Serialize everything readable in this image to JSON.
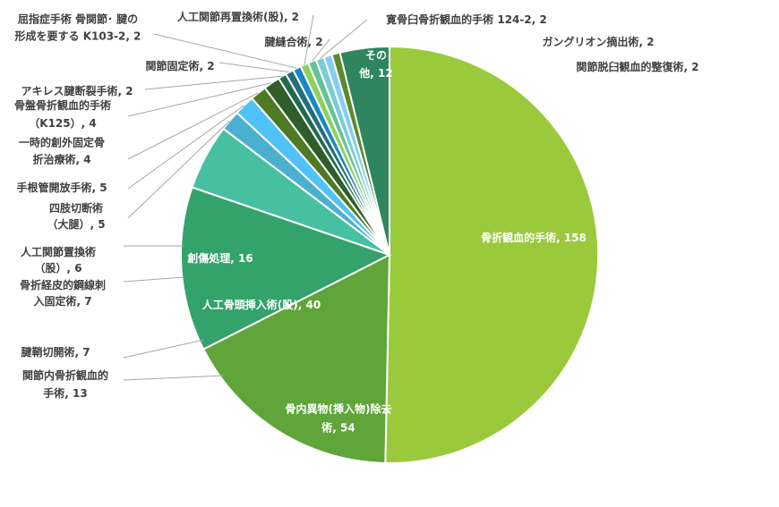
{
  "chart_data": {
    "type": "pie",
    "title": "",
    "slices": [
      {
        "label": "骨折観血的手術",
        "value": 158,
        "color": "#9ACA3C"
      },
      {
        "label": "骨内異物(挿入物)除去術",
        "value": 54,
        "color": "#5FA53A"
      },
      {
        "label": "人工骨頭挿入術(股)",
        "value": 40,
        "color": "#33A26B"
      },
      {
        "label": "創傷処理",
        "value": 16,
        "color": "#46C0A0"
      },
      {
        "label": "四肢切断術（大腿）",
        "value": 5,
        "color": "#4BAFD0"
      },
      {
        "label": "手根管開放手術",
        "value": 5,
        "color": "#4FC3F7"
      },
      {
        "label": "一時的創外固定骨折治療術",
        "value": 4,
        "color": "#4E7A25"
      },
      {
        "label": "骨盤骨折観血的手術（K125）",
        "value": 4,
        "color": "#2F5E2A"
      },
      {
        "label": "アキレス腱断裂手術",
        "value": 2,
        "color": "#1E6B50"
      },
      {
        "label": "関節固定術",
        "value": 2,
        "color": "#256E7E"
      },
      {
        "label": "屈指症手術 骨関節･腱の形成を要する K103-2",
        "value": 2,
        "color": "#1A88C4"
      },
      {
        "label": "人工関節再置換術(股)",
        "value": 2,
        "color": "#8ED15A"
      },
      {
        "label": "腱縫合術",
        "value": 2,
        "color": "#64C29A"
      },
      {
        "label": "寛骨臼骨折観血的手術 124-2",
        "value": 2,
        "color": "#7ACBD7"
      },
      {
        "label": "ガングリオン摘出術",
        "value": 2,
        "color": "#84CEF4"
      },
      {
        "label": "関節脱臼観血的整復術",
        "value": 2,
        "color": "#5A8A2A"
      },
      {
        "label": "その他",
        "value": 12,
        "color": "#2E855E"
      }
    ],
    "data_labels": [
      {
        "lines": [
          "骨折観血的手術, 158"
        ]
      },
      {
        "lines": [
          "骨内異物(挿入物)除去",
          "術, 54"
        ]
      },
      {
        "lines": [
          "人工骨頭挿入術(股), 40"
        ]
      },
      {
        "lines": [
          "創傷処理, 16"
        ]
      },
      {
        "lines": [
          "四肢切断術",
          "（大腿）, 5"
        ]
      },
      {
        "lines": [
          "手根管開放手術, 5"
        ]
      },
      {
        "lines": [
          "一時的創外固定骨",
          "折治療術, 4"
        ]
      },
      {
        "lines": [
          "骨盤骨折観血的手術",
          "（K125）, 4"
        ]
      },
      {
        "lines": [
          "アキレス腱断裂手術, 2"
        ]
      },
      {
        "lines": [
          "関節固定術, 2"
        ]
      },
      {
        "lines": [
          "屈指症手術 骨関節･ 腱の",
          "形成を要する K103-2, 2"
        ]
      },
      {
        "lines": [
          "人工関節再置換術(股), 2"
        ]
      },
      {
        "lines": [
          "腱縫合術, 2"
        ]
      },
      {
        "lines": [
          "寛骨臼骨折観血的手術 124-2, 2"
        ]
      },
      {
        "lines": [
          "ガングリオン摘出術, 2"
        ]
      },
      {
        "lines": [
          "関節脱臼観血的整復術, 2"
        ]
      },
      {
        "lines": [
          "その",
          "他, 12"
        ]
      }
    ],
    "extra_labels": [
      {
        "lines": [
          "人工関節置換術",
          "（股）, 6"
        ]
      },
      {
        "lines": [
          "骨折経皮的鋼線刺",
          "入固定術, 7"
        ]
      },
      {
        "lines": [
          "腱鞘切開術, 7"
        ]
      },
      {
        "lines": [
          "関節内骨折観血的",
          "手術, 13"
        ]
      }
    ],
    "legend": "none"
  }
}
